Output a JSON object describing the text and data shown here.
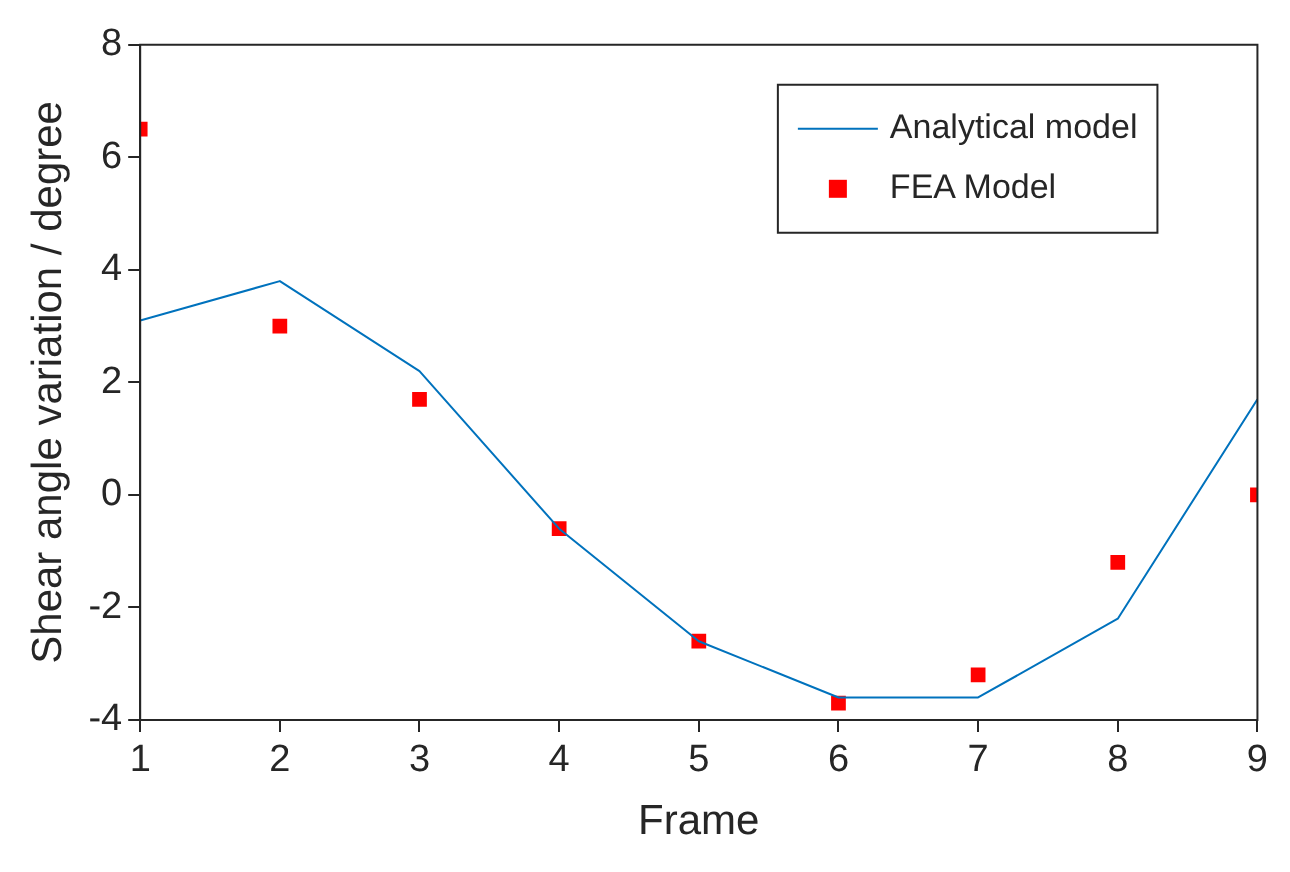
{
  "chart_data": {
    "type": "line",
    "xlabel": "Frame",
    "ylabel": "Shear angle variation / degree",
    "x": [
      1,
      2,
      3,
      4,
      5,
      6,
      7,
      8,
      9
    ],
    "series": [
      {
        "name": "Analytical model",
        "type": "line",
        "color": "#0072bd",
        "marker": "none",
        "values": [
          3.1,
          3.8,
          2.2,
          -0.6,
          -2.6,
          -3.6,
          -3.6,
          -2.2,
          1.7
        ]
      },
      {
        "name": "FEA Model",
        "type": "scatter",
        "color": "#ff0000",
        "marker": "square",
        "values": [
          6.5,
          3.0,
          1.7,
          -0.6,
          -2.6,
          -3.7,
          -3.2,
          -1.2,
          0.0
        ]
      }
    ],
    "xlim": [
      1,
      9
    ],
    "xticks": [
      1,
      2,
      3,
      4,
      5,
      6,
      7,
      8,
      9
    ],
    "ylim": [
      -4,
      8
    ],
    "yticks": [
      -4,
      -2,
      0,
      2,
      4,
      6,
      8
    ],
    "grid": false,
    "legend": "top right"
  }
}
